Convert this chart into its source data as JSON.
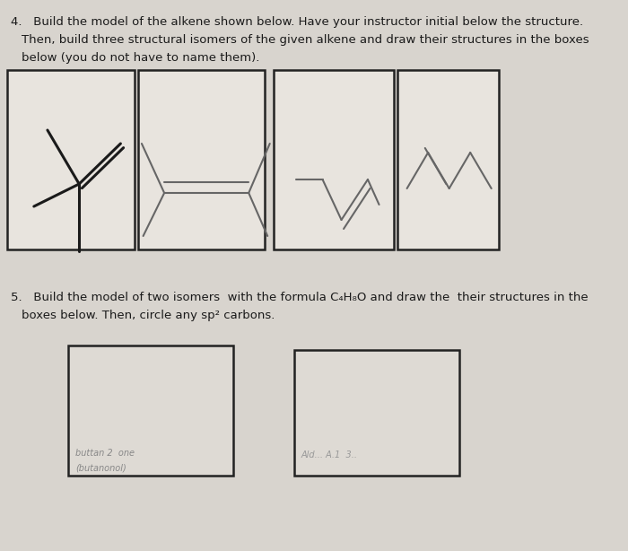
{
  "bg_color": "#d8d4ce",
  "box_face": "#e8e4de",
  "box_face2": "#dedad4",
  "text_color": "#1a1a1a",
  "box_edge": "#222222",
  "mol_color1": "#1a1a1a",
  "mol_color2": "#666666",
  "line1_q4": "4.   Build the model of the alkene shown below. Have your instructor initial below the structure.",
  "line2_q4": "Then, build three structural isomers of the given alkene and draw their structures in the boxes",
  "line3_q4": "below (you do not have to name them).",
  "line1_q5": "5.   Build the model of two isomers  with the formula C₄H₈O and draw the  their structures in the",
  "line2_q5": "boxes below. Then, circle any sp² carbons.",
  "note1a": "buttan 2  one",
  "note1b": "(butanonol)",
  "note2a": "Ald... A.1  3.."
}
